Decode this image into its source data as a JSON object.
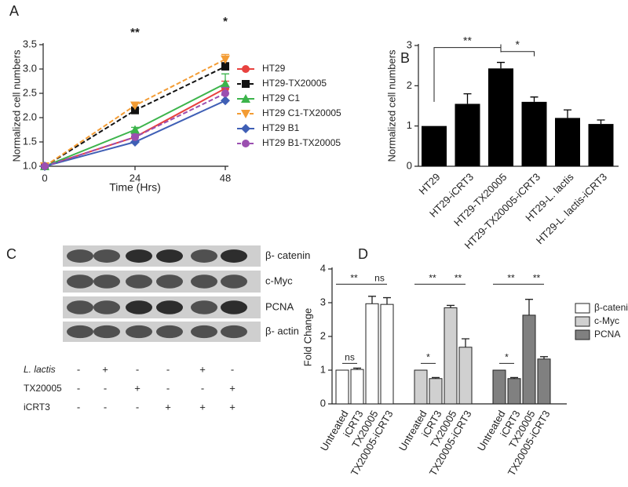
{
  "chart_data": [
    {
      "type": "line",
      "panel": "A",
      "xlabel": "Time (Hrs)",
      "ylabel": "Normalized cell numbers",
      "x": [
        0,
        24,
        48
      ],
      "xlim": [
        0,
        48
      ],
      "xticks": [
        0,
        24,
        48
      ],
      "ylim": [
        1,
        3.5
      ],
      "yticks": [
        {
          "value": 1,
          "label": "1.0"
        },
        1.5,
        {
          "value": 2,
          "label": "2.0"
        },
        2.5,
        {
          "value": 3,
          "label": "3.0"
        },
        3.5
      ],
      "series": [
        {
          "name": "HT29",
          "color": "#e8423f",
          "marker": "circle",
          "dashed": false,
          "values": [
            1,
            1.6,
            2.6
          ],
          "errors": [
            0,
            0.08,
            0.15
          ]
        },
        {
          "name": "HT29-TX20005",
          "color": "#111111",
          "marker": "square",
          "dashed": true,
          "values": [
            1,
            2.15,
            3.05
          ],
          "errors": [
            0,
            0.05,
            0.08
          ]
        },
        {
          "name": "HT29 C1",
          "color": "#3cb44b",
          "marker": "triangle",
          "dashed": false,
          "values": [
            1,
            1.75,
            2.7
          ],
          "errors": [
            0,
            0.05,
            0.2
          ]
        },
        {
          "name": "HT29 C1-TX20005",
          "color": "#f39c34",
          "marker": "triangle-down",
          "dashed": true,
          "values": [
            1,
            2.25,
            3.2
          ],
          "errors": [
            0,
            0.05,
            0.1
          ]
        },
        {
          "name": "HT29 B1",
          "color": "#3f5fb5",
          "marker": "diamond",
          "dashed": false,
          "values": [
            1,
            1.5,
            2.35
          ],
          "errors": [
            0,
            0.12,
            0.15
          ]
        },
        {
          "name": "HT29 B1-TX20005",
          "color": "#9b4fb0",
          "marker": "circle",
          "dashed": true,
          "values": [
            1,
            1.6,
            2.5
          ],
          "errors": [
            0,
            0.06,
            0.12
          ]
        }
      ],
      "annotations": [
        "**",
        "*"
      ]
    },
    {
      "type": "bar",
      "panel": "B",
      "ylabel": "Normalized cell numbers",
      "categories": [
        "HT29",
        "HT29-iCRT3",
        "HT29-TX20005",
        "HT29-TX20005-iCRT3",
        "HT29-L. lactis",
        "HT29-L. lactis-iCRT3"
      ],
      "values": [
        1,
        1.55,
        2.43,
        1.6,
        1.2,
        1.05
      ],
      "errors": [
        0,
        0.25,
        0.15,
        0.12,
        0.2,
        0.1
      ],
      "color": "#000000",
      "ylim": [
        0,
        3
      ],
      "yticks": [
        0,
        1,
        2,
        3
      ],
      "annotations": [
        "**",
        "*"
      ]
    },
    {
      "type": "grouped-bar",
      "panel": "D",
      "ylabel": "Fold Change",
      "categories": [
        "Untreated",
        "iCRT3",
        "TX20005",
        "TX20005-iCRT3"
      ],
      "ylim": [
        0,
        4
      ],
      "yticks": [
        0,
        1,
        2,
        3,
        4
      ],
      "series": [
        {
          "name": "β-catenin",
          "color": "#ffffff",
          "values": [
            1,
            1.02,
            2.97,
            2.95
          ],
          "errors": [
            0,
            0.04,
            0.22,
            0.2
          ]
        },
        {
          "name": "c-Myc",
          "color": "#d0d0d0",
          "values": [
            1,
            0.75,
            2.85,
            1.68
          ],
          "errors": [
            0,
            0.03,
            0.07,
            0.25
          ]
        },
        {
          "name": "PCNA",
          "color": "#808080",
          "values": [
            1,
            0.75,
            2.63,
            1.33
          ],
          "errors": [
            0,
            0.03,
            0.47,
            0.07
          ]
        }
      ],
      "annotations": [
        "ns",
        "**",
        "ns",
        "*",
        "**",
        "**",
        "*",
        "**",
        "**"
      ]
    }
  ],
  "blot": {
    "panel": "C",
    "bands": [
      "β- catenin",
      "c-Myc",
      "PCNA",
      "β- actin"
    ],
    "rows": [
      {
        "label": "L. lactis",
        "signs": [
          "-",
          "+",
          "-",
          "-",
          "+",
          "-"
        ]
      },
      {
        "label": "TX20005",
        "signs": [
          "-",
          "-",
          "+",
          "-",
          "-",
          "+"
        ]
      },
      {
        "label": "iCRT3",
        "signs": [
          "-",
          "-",
          "-",
          "+",
          "+",
          "+"
        ]
      }
    ]
  }
}
